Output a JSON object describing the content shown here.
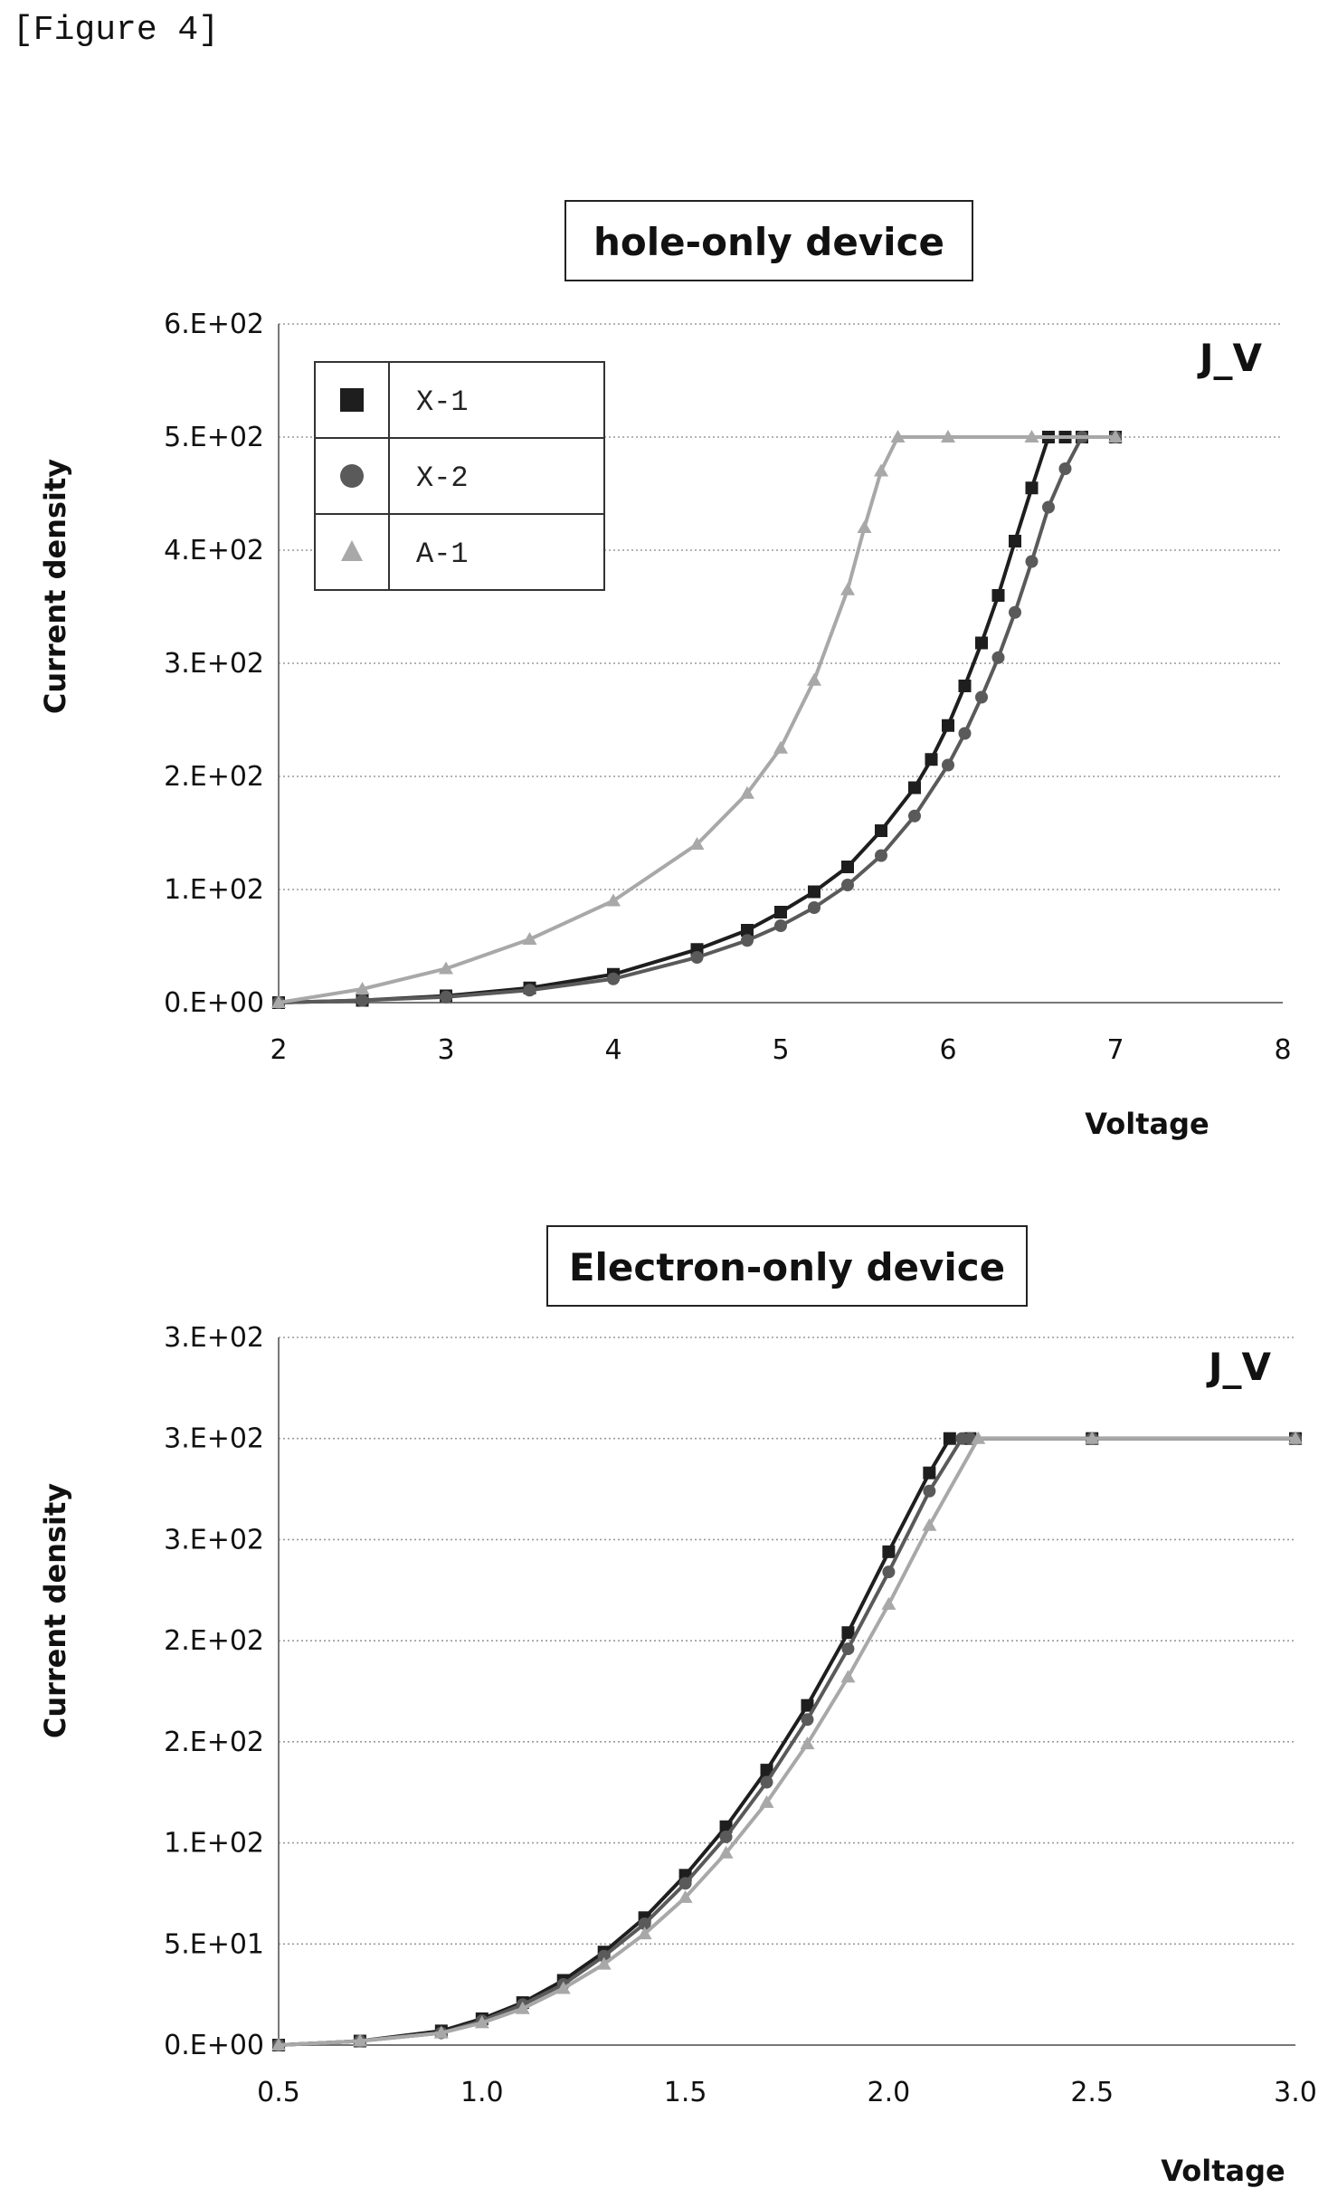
{
  "figure_label": "[Figure 4]",
  "chart_data": [
    {
      "type": "line",
      "title": "hole-only device",
      "annotation": "J_V",
      "xlabel": "Voltage",
      "ylabel": "Current density",
      "xlim": [
        2,
        8
      ],
      "ylim": [
        0,
        600
      ],
      "x_ticks": [
        "2",
        "3",
        "4",
        "5",
        "6",
        "7",
        "8"
      ],
      "y_ticks": [
        "0.E+00",
        "1.E+02",
        "2.E+02",
        "3.E+02",
        "4.E+02",
        "5.E+02",
        "6.E+02"
      ],
      "grid": true,
      "legend_position": "top-left",
      "series": [
        {
          "name": "X-1",
          "marker": "square",
          "color": "#1e1e1e",
          "x": [
            2.0,
            2.5,
            3.0,
            3.5,
            4.0,
            4.5,
            4.8,
            5.0,
            5.2,
            5.4,
            5.6,
            5.8,
            5.9,
            6.0,
            6.1,
            6.2,
            6.3,
            6.4,
            6.5,
            6.6,
            6.7,
            6.8,
            7.0
          ],
          "y": [
            0,
            2,
            6,
            13,
            25,
            47,
            64,
            80,
            98,
            120,
            152,
            190,
            215,
            245,
            280,
            318,
            360,
            408,
            455,
            500,
            500,
            500,
            500
          ]
        },
        {
          "name": "X-2",
          "marker": "circle",
          "color": "#5a5a5a",
          "x": [
            2.0,
            2.5,
            3.0,
            3.5,
            4.0,
            4.5,
            4.8,
            5.0,
            5.2,
            5.4,
            5.6,
            5.8,
            6.0,
            6.1,
            6.2,
            6.3,
            6.4,
            6.5,
            6.6,
            6.7,
            6.8,
            7.0
          ],
          "y": [
            0,
            2,
            5,
            11,
            21,
            40,
            55,
            68,
            84,
            104,
            130,
            165,
            210,
            238,
            270,
            305,
            345,
            390,
            438,
            472,
            500,
            500
          ]
        },
        {
          "name": "A-1",
          "marker": "triangle",
          "color": "#a8a8a8",
          "x": [
            2.0,
            2.5,
            3.0,
            3.5,
            4.0,
            4.5,
            4.8,
            5.0,
            5.2,
            5.4,
            5.5,
            5.6,
            5.7,
            6.0,
            6.5,
            7.0
          ],
          "y": [
            0,
            12,
            30,
            56,
            90,
            140,
            185,
            225,
            285,
            365,
            420,
            470,
            500,
            500,
            500,
            500
          ]
        }
      ]
    },
    {
      "type": "line",
      "title": "Electron-only device",
      "annotation": "J_V",
      "xlabel": "Voltage",
      "ylabel": "Current density",
      "xlim": [
        0.5,
        3.0
      ],
      "ylim": [
        0,
        350
      ],
      "x_ticks": [
        "0.5",
        "1.0",
        "1.5",
        "2.0",
        "2.5",
        "3.0"
      ],
      "y_ticks": [
        "0.E+00",
        "5.E+01",
        "1.E+02",
        "2.E+02",
        "2.E+02",
        "3.E+02",
        "3.E+02",
        "3.E+02"
      ],
      "grid": true,
      "legend_position": "none",
      "series": [
        {
          "name": "X-1",
          "marker": "square",
          "color": "#1e1e1e",
          "x": [
            0.5,
            0.7,
            0.9,
            1.0,
            1.1,
            1.2,
            1.3,
            1.4,
            1.5,
            1.6,
            1.7,
            1.8,
            1.9,
            2.0,
            2.1,
            2.15,
            2.2,
            2.5,
            3.0
          ],
          "y": [
            0,
            2,
            7,
            13,
            21,
            32,
            46,
            63,
            84,
            108,
            136,
            168,
            204,
            244,
            283,
            300,
            300,
            300,
            300
          ]
        },
        {
          "name": "X-2",
          "marker": "circle",
          "color": "#5a5a5a",
          "x": [
            0.5,
            0.7,
            0.9,
            1.0,
            1.1,
            1.2,
            1.3,
            1.4,
            1.5,
            1.6,
            1.7,
            1.8,
            1.9,
            2.0,
            2.1,
            2.18,
            2.2,
            2.5,
            3.0
          ],
          "y": [
            0,
            2,
            6,
            12,
            20,
            30,
            44,
            60,
            80,
            103,
            130,
            161,
            196,
            234,
            274,
            300,
            300,
            300,
            300
          ]
        },
        {
          "name": "A-1",
          "marker": "triangle",
          "color": "#a8a8a8",
          "x": [
            0.5,
            0.7,
            0.9,
            1.0,
            1.1,
            1.2,
            1.3,
            1.4,
            1.5,
            1.6,
            1.7,
            1.8,
            1.9,
            2.0,
            2.1,
            2.22,
            2.5,
            3.0
          ],
          "y": [
            0,
            2,
            6,
            11,
            18,
            28,
            40,
            55,
            73,
            95,
            120,
            149,
            182,
            218,
            257,
            300,
            300,
            300
          ]
        }
      ]
    }
  ]
}
